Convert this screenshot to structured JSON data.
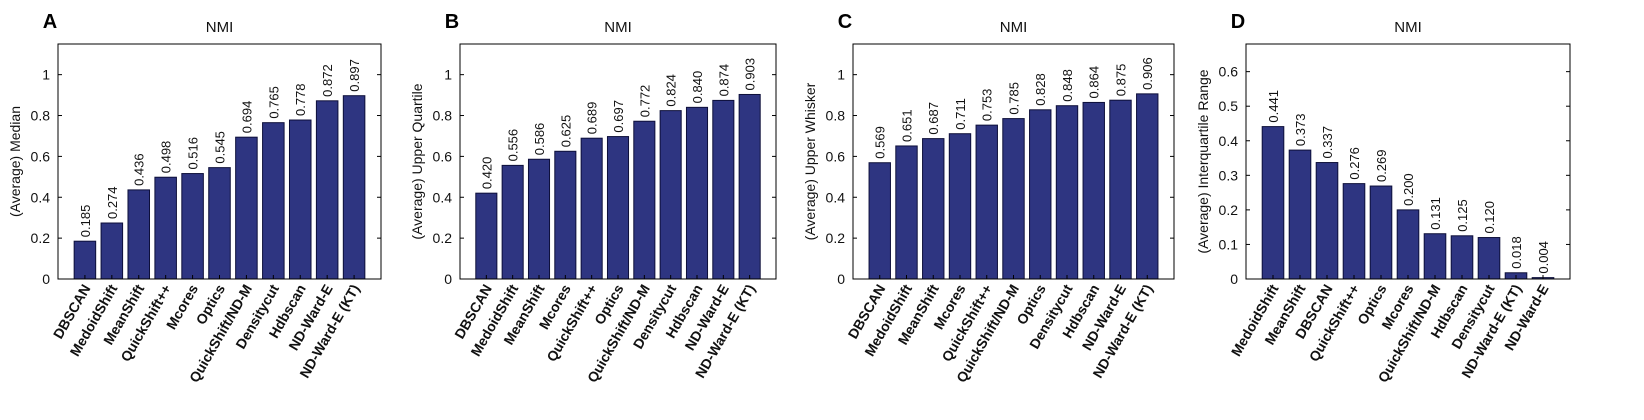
{
  "colors": {
    "bar": "#2e3581",
    "bar_edge": "#0d0f3a"
  },
  "chart_data": [
    {
      "type": "bar",
      "panel": "A",
      "title": "NMI",
      "ylabel": "(Average) Median",
      "xlabel": "",
      "ylim": [
        0,
        1.15
      ],
      "yticks": [
        "0",
        "0.2",
        "0.4",
        "0.6",
        "0.8",
        "1"
      ],
      "categories": [
        "DBSCAN",
        "MedoidShift",
        "MeanShift",
        "QuickShift++",
        "Mcores",
        "Optics",
        "QuickShift/ND-M",
        "Densitycut",
        "Hdbscan",
        "ND-Ward-E",
        "ND-Ward-E (KT)"
      ],
      "values": [
        0.185,
        0.274,
        0.436,
        0.498,
        0.516,
        0.545,
        0.694,
        0.765,
        0.778,
        0.872,
        0.897
      ],
      "labels": [
        "0.185",
        "0.274",
        "0.436",
        "0.498",
        "0.516",
        "0.545",
        "0.694",
        "0.765",
        "0.778",
        "0.872",
        "0.897"
      ],
      "grid": false
    },
    {
      "type": "bar",
      "panel": "B",
      "title": "NMI",
      "ylabel": "(Average) Upper Quartile",
      "xlabel": "",
      "ylim": [
        0,
        1.15
      ],
      "yticks": [
        "0",
        "0.2",
        "0.4",
        "0.6",
        "0.8",
        "1"
      ],
      "categories": [
        "DBSCAN",
        "MedoidShift",
        "MeanShift",
        "Mcores",
        "QuickShift++",
        "Optics",
        "QuickShift/ND-M",
        "Densitycut",
        "Hdbscan",
        "ND-Ward-E",
        "ND-Ward-E (KT)"
      ],
      "values": [
        0.42,
        0.556,
        0.586,
        0.625,
        0.689,
        0.697,
        0.772,
        0.824,
        0.84,
        0.874,
        0.903
      ],
      "labels": [
        "0.420",
        "0.556",
        "0.586",
        "0.625",
        "0.689",
        "0.697",
        "0.772",
        "0.824",
        "0.840",
        "0.874",
        "0.903"
      ],
      "grid": false
    },
    {
      "type": "bar",
      "panel": "C",
      "title": "NMI",
      "ylabel": "(Average) Upper Whisker",
      "xlabel": "",
      "ylim": [
        0,
        1.15
      ],
      "yticks": [
        "0",
        "0.2",
        "0.4",
        "0.6",
        "0.8",
        "1"
      ],
      "categories": [
        "DBSCAN",
        "MedoidShift",
        "MeanShift",
        "Mcores",
        "QuickShift++",
        "QuickShift/ND-M",
        "Optics",
        "Densitycut",
        "Hdbscan",
        "ND-Ward-E",
        "ND-Ward-E (KT)"
      ],
      "values": [
        0.569,
        0.651,
        0.687,
        0.711,
        0.753,
        0.785,
        0.828,
        0.848,
        0.864,
        0.875,
        0.906
      ],
      "labels": [
        "0.569",
        "0.651",
        "0.687",
        "0.711",
        "0.753",
        "0.785",
        "0.828",
        "0.848",
        "0.864",
        "0.875",
        "0.906"
      ],
      "grid": false
    },
    {
      "type": "bar",
      "panel": "D",
      "title": "NMI",
      "ylabel": "(Average) Interquartile Range",
      "xlabel": "",
      "ylim": [
        0,
        0.68
      ],
      "yticks": [
        "0",
        "0.1",
        "0.2",
        "0.3",
        "0.4",
        "0.5",
        "0.6"
      ],
      "categories": [
        "MedoidShift",
        "MeanShift",
        "DBSCAN",
        "QuickShift++",
        "Optics",
        "Mcores",
        "QuickShift/ND-M",
        "Hdbscan",
        "Densitycut",
        "ND-Ward-E (KT)",
        "ND-Ward-E"
      ],
      "values": [
        0.441,
        0.373,
        0.337,
        0.276,
        0.269,
        0.2,
        0.131,
        0.125,
        0.12,
        0.018,
        0.004
      ],
      "labels": [
        "0.441",
        "0.373",
        "0.337",
        "0.276",
        "0.269",
        "0.200",
        "0.131",
        "0.125",
        "0.120",
        "0.018",
        "0.004"
      ],
      "grid": false
    }
  ]
}
